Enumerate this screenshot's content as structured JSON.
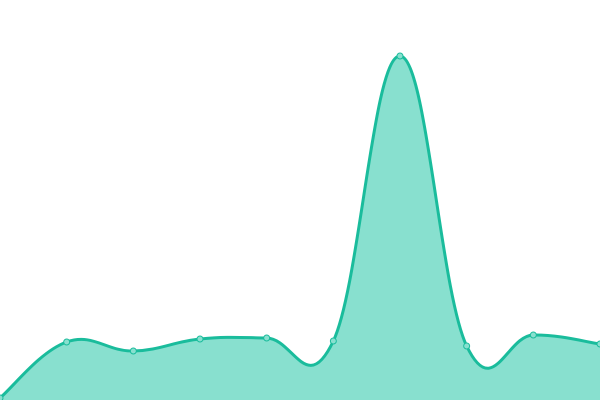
{
  "chart_data": {
    "type": "area",
    "title": "",
    "xlabel": "",
    "ylabel": "",
    "x": [
      0,
      1,
      2,
      3,
      4,
      5,
      6,
      7,
      8,
      9
    ],
    "values": [
      2,
      58,
      49,
      61,
      62,
      59,
      344,
      54,
      65,
      56
    ],
    "ylim": [
      0,
      400
    ],
    "grid": false,
    "axes_visible": false,
    "smooth": true,
    "markers": true,
    "colors": {
      "line": "#1abc9c",
      "fill": "#88e0cf",
      "marker_fill": "#88e0cf",
      "marker_stroke": "#1abc9c"
    }
  }
}
